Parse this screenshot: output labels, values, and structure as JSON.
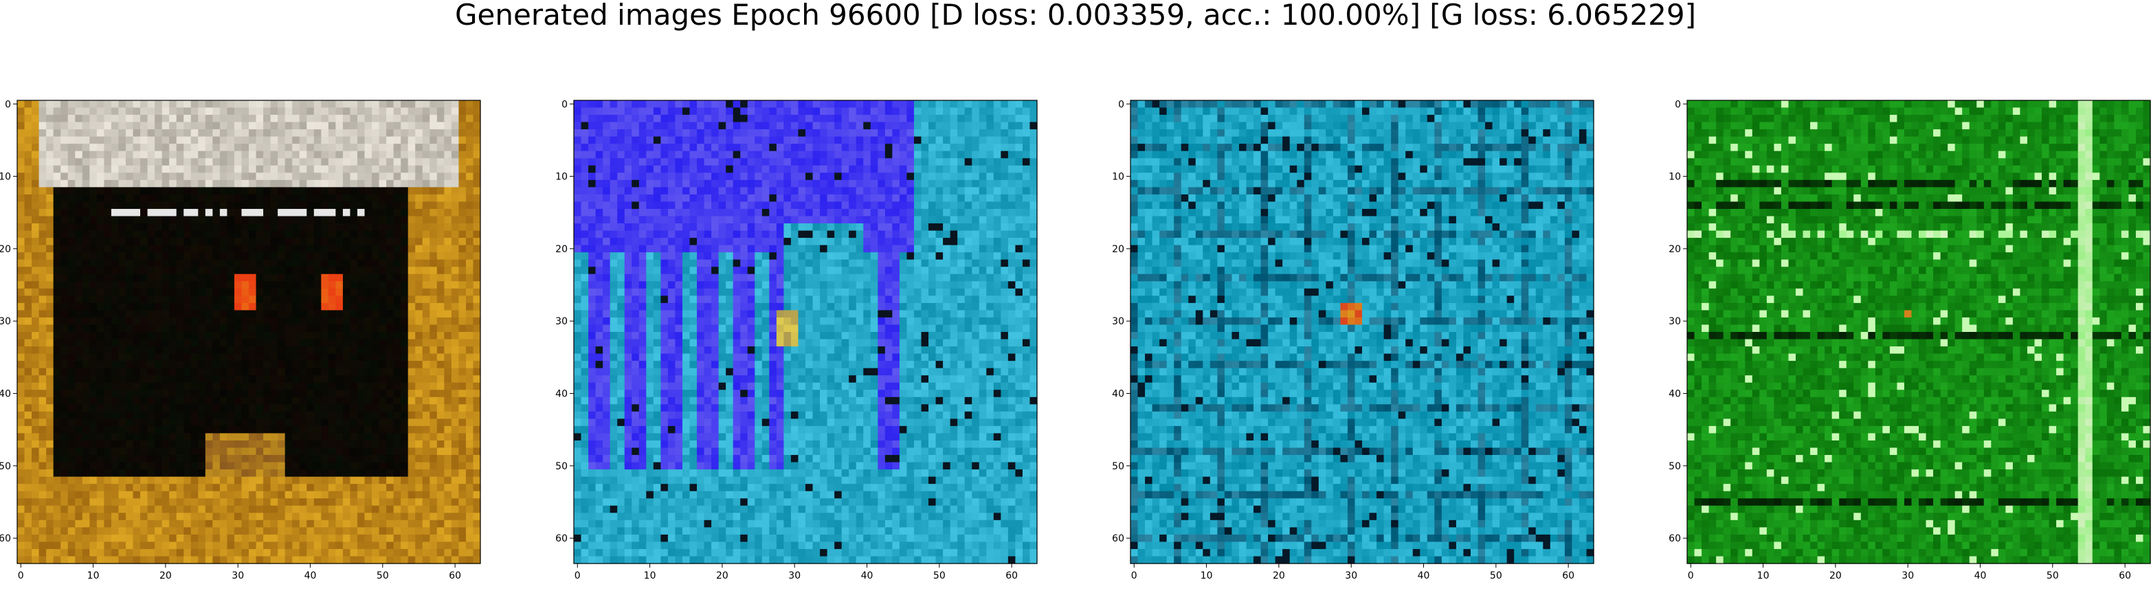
{
  "title": "Generated images Epoch 96600 [D loss: 0.003359, acc.: 100.00%] [G loss: 6.065229]",
  "chart_data": [
    {
      "type": "heatmap",
      "description_key": "generated-sample-1",
      "xlim": [
        0,
        63
      ],
      "ylim": [
        63,
        0
      ],
      "xticks": [
        0,
        10,
        20,
        30,
        40,
        50,
        60
      ],
      "yticks": [
        0,
        10,
        20,
        30,
        40,
        50,
        60
      ],
      "dominant_colors": [
        "#b8860b",
        "#050505",
        "#e23b12",
        "#d9d9d9"
      ]
    },
    {
      "type": "heatmap",
      "description_key": "generated-sample-2",
      "xlim": [
        0,
        63
      ],
      "ylim": [
        63,
        0
      ],
      "xticks": [
        0,
        10,
        20,
        30,
        40,
        50,
        60
      ],
      "yticks": [
        0,
        10,
        20,
        30,
        40,
        50,
        60
      ],
      "dominant_colors": [
        "#3a3af0",
        "#1fb3c8",
        "#0d4a5a",
        "#c8b24a"
      ]
    },
    {
      "type": "heatmap",
      "description_key": "generated-sample-3",
      "xlim": [
        0,
        63
      ],
      "ylim": [
        63,
        0
      ],
      "xticks": [
        0,
        10,
        20,
        30,
        40,
        50,
        60
      ],
      "yticks": [
        0,
        10,
        20,
        30,
        40,
        50,
        60
      ],
      "dominant_colors": [
        "#1ba7c2",
        "#0c5a6e",
        "#9fe8f0",
        "#d63a1a"
      ]
    },
    {
      "type": "heatmap",
      "description_key": "generated-sample-4",
      "xlim": [
        0,
        63
      ],
      "ylim": [
        63,
        0
      ],
      "xticks": [
        0,
        10,
        20,
        30,
        40,
        50,
        60
      ],
      "yticks": [
        0,
        10,
        20,
        30,
        40,
        50,
        60
      ],
      "dominant_colors": [
        "#1a9a1a",
        "#063a06",
        "#b8f5a0",
        "#d07a20"
      ]
    }
  ]
}
